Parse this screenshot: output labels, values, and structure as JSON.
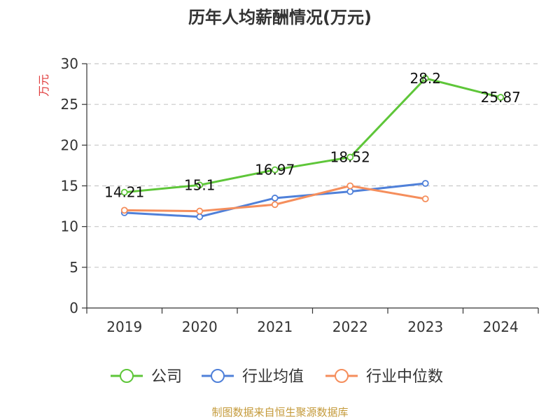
{
  "chart_data": {
    "type": "line",
    "title": "历年人均薪酬情况(万元)",
    "xlabel": "",
    "ylabel": "万元",
    "categories": [
      "2019",
      "2020",
      "2021",
      "2022",
      "2023",
      "2024"
    ],
    "ylim": [
      0,
      30
    ],
    "yticks": [
      0,
      5,
      10,
      15,
      20,
      25,
      30
    ],
    "grid": true,
    "legend_position": "bottom",
    "series": [
      {
        "name": "公司",
        "color": "#5ec639",
        "values": [
          14.21,
          15.1,
          16.97,
          18.52,
          28.2,
          25.87
        ],
        "labels": [
          "14.21",
          "15.1",
          "16.97",
          "18.52",
          "28.2",
          "25.87"
        ]
      },
      {
        "name": "行业均值",
        "color": "#4f80d9",
        "values": [
          11.7,
          11.2,
          13.5,
          14.3,
          15.3,
          null
        ],
        "labels": null
      },
      {
        "name": "行业中位数",
        "color": "#f58e5c",
        "values": [
          12.0,
          11.9,
          12.7,
          15.0,
          13.4,
          null
        ],
        "labels": null
      }
    ]
  },
  "footer": "制图数据来自恒生聚源数据库"
}
